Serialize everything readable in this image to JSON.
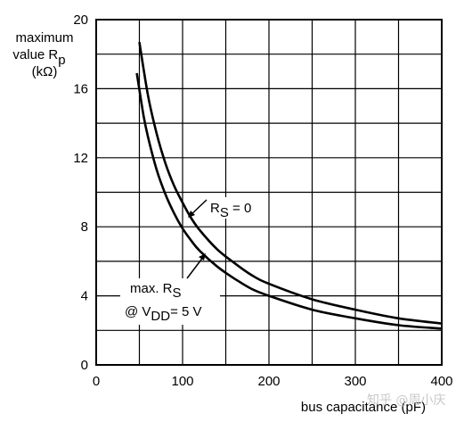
{
  "chart_data": {
    "type": "line",
    "ylabel_lines": [
      "maximum",
      "value R",
      "(kΩ)"
    ],
    "ylabel_sub": "p",
    "xlabel": "bus capacitance (pF)",
    "xlim": [
      0,
      400
    ],
    "ylim": [
      0,
      20
    ],
    "x_ticks": [
      "0",
      "100",
      "200",
      "300",
      "400"
    ],
    "y_ticks": [
      "0",
      "4",
      "8",
      "12",
      "16",
      "20"
    ],
    "grid": true,
    "series": [
      {
        "id": "rs0",
        "x": [
          50,
          60,
          70,
          80,
          90,
          100,
          110,
          120,
          140,
          160,
          180,
          200,
          250,
          300,
          350,
          400
        ],
        "y": [
          18.7,
          15.6,
          13.4,
          11.7,
          10.4,
          9.4,
          8.5,
          7.8,
          6.7,
          5.9,
          5.2,
          4.7,
          3.8,
          3.2,
          2.7,
          2.4
        ]
      },
      {
        "id": "rsmax",
        "x": [
          47,
          55,
          60,
          70,
          80,
          90,
          100,
          110,
          120,
          140,
          160,
          180,
          200,
          250,
          300,
          350,
          400
        ],
        "y": [
          16.9,
          14.4,
          13.2,
          11.3,
          9.9,
          8.8,
          7.9,
          7.2,
          6.6,
          5.7,
          5.0,
          4.4,
          4.0,
          3.2,
          2.7,
          2.3,
          2.1
        ]
      }
    ],
    "annotations": [
      {
        "id": "ann-rs0",
        "text": "R",
        "sub": "S",
        "tail": " = 0"
      },
      {
        "id": "ann-max",
        "line1": "max. R",
        "line1_sub": "S",
        "line2_pre": "@ V",
        "line2_sub": "DD",
        "line2_tail": "= 5 V"
      }
    ]
  },
  "watermark": "知乎 @周小庆"
}
